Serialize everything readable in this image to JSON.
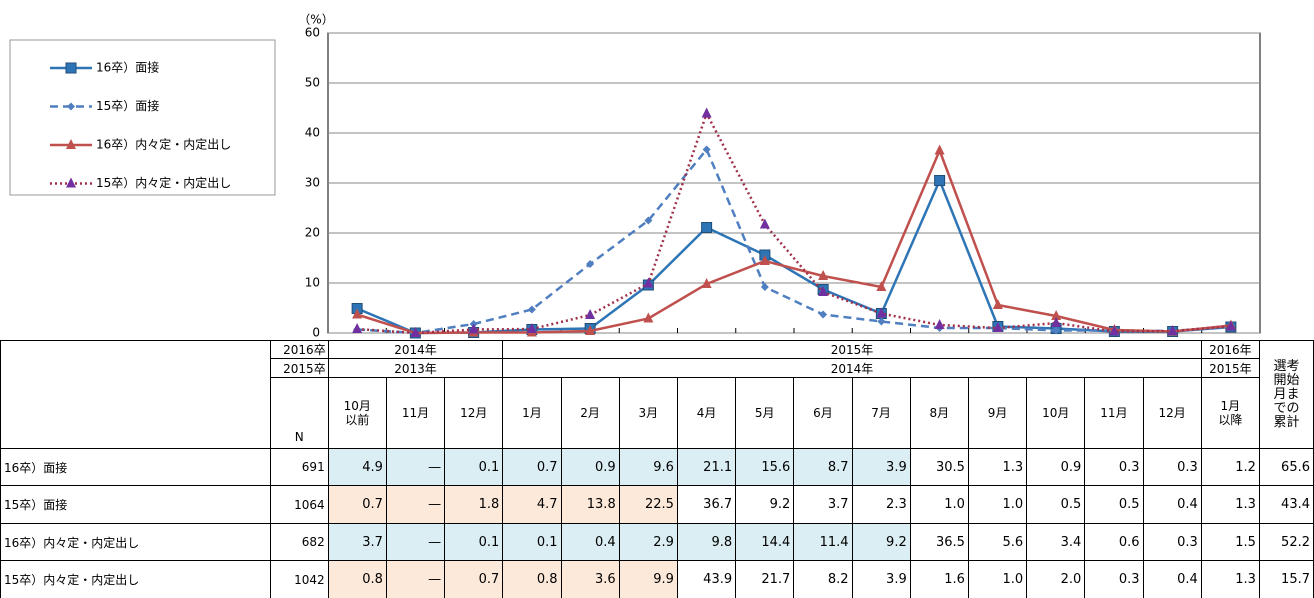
{
  "chart_data": {
    "type": "line",
    "y_unit_label": "（%）",
    "categories": [
      "10月以前",
      "11月",
      "12月",
      "1月",
      "2月",
      "3月",
      "4月",
      "5月",
      "6月",
      "7月",
      "8月",
      "9月",
      "10月",
      "11月",
      "12月",
      "1月以降"
    ],
    "ylim": [
      0,
      60
    ],
    "yticks": [
      0,
      10,
      20,
      30,
      40,
      50,
      60
    ],
    "grid": true,
    "series": [
      {
        "name": "16卒）面接",
        "color": "#2e75b6",
        "dash": "solid",
        "marker": "square",
        "n": 691,
        "cumulative": 65.6,
        "values": [
          4.9,
          0,
          0.1,
          0.7,
          0.9,
          9.6,
          21.1,
          15.6,
          8.7,
          3.9,
          30.5,
          1.3,
          0.9,
          0.3,
          0.3,
          1.2
        ],
        "value_labels": [
          "4.9",
          "—",
          "0.1",
          "0.7",
          "0.9",
          "9.6",
          "21.1",
          "15.6",
          "8.7",
          "3.9",
          "30.5",
          "1.3",
          "0.9",
          "0.3",
          "0.3",
          "1.2"
        ]
      },
      {
        "name": "15卒）面接",
        "color": "#4f7fc0",
        "dash": "dashed",
        "marker": "diamond",
        "n": 1064,
        "cumulative": 43.4,
        "values": [
          0.7,
          0,
          1.8,
          4.7,
          13.8,
          22.5,
          36.7,
          9.2,
          3.7,
          2.3,
          1.0,
          1.0,
          0.5,
          0.5,
          0.4,
          1.3
        ],
        "value_labels": [
          "0.7",
          "—",
          "1.8",
          "4.7",
          "13.8",
          "22.5",
          "36.7",
          "9.2",
          "3.7",
          "2.3",
          "1.0",
          "1.0",
          "0.5",
          "0.5",
          "0.4",
          "1.3"
        ]
      },
      {
        "name": "16卒）内々定・内定出し",
        "color": "#c0504d",
        "dash": "solid",
        "marker": "triangle",
        "n": 682,
        "cumulative": 52.2,
        "values": [
          3.7,
          0,
          0.1,
          0.1,
          0.4,
          2.9,
          9.8,
          14.4,
          11.4,
          9.2,
          36.5,
          5.6,
          3.4,
          0.6,
          0.3,
          1.5
        ],
        "value_labels": [
          "3.7",
          "—",
          "0.1",
          "0.1",
          "0.4",
          "2.9",
          "9.8",
          "14.4",
          "11.4",
          "9.2",
          "36.5",
          "5.6",
          "3.4",
          "0.6",
          "0.3",
          "1.5"
        ]
      },
      {
        "name": "15卒）内々定・内定出し",
        "color": "#a0304a",
        "marker_color": "#7030a0",
        "dash": "dotted",
        "marker": "triangle",
        "n": 1042,
        "cumulative": 15.7,
        "values": [
          0.8,
          0,
          0.7,
          0.8,
          3.6,
          9.9,
          43.9,
          21.7,
          8.2,
          3.9,
          1.6,
          1.0,
          2.0,
          0.3,
          0.4,
          1.3
        ],
        "value_labels": [
          "0.8",
          "—",
          "0.7",
          "0.8",
          "3.6",
          "9.9",
          "43.9",
          "21.7",
          "8.2",
          "3.9",
          "1.6",
          "1.0",
          "2.0",
          "0.3",
          "0.4",
          "1.3"
        ]
      }
    ],
    "table": {
      "n_header": "N",
      "total_header": "選考開始月までの累計",
      "cohort_rows": [
        {
          "label": "2016卒",
          "years": [
            "2014年",
            "2015年",
            "2016年"
          ]
        },
        {
          "label": "2015卒",
          "years": [
            "2013年",
            "2014年",
            "2015年"
          ]
        }
      ]
    }
  }
}
